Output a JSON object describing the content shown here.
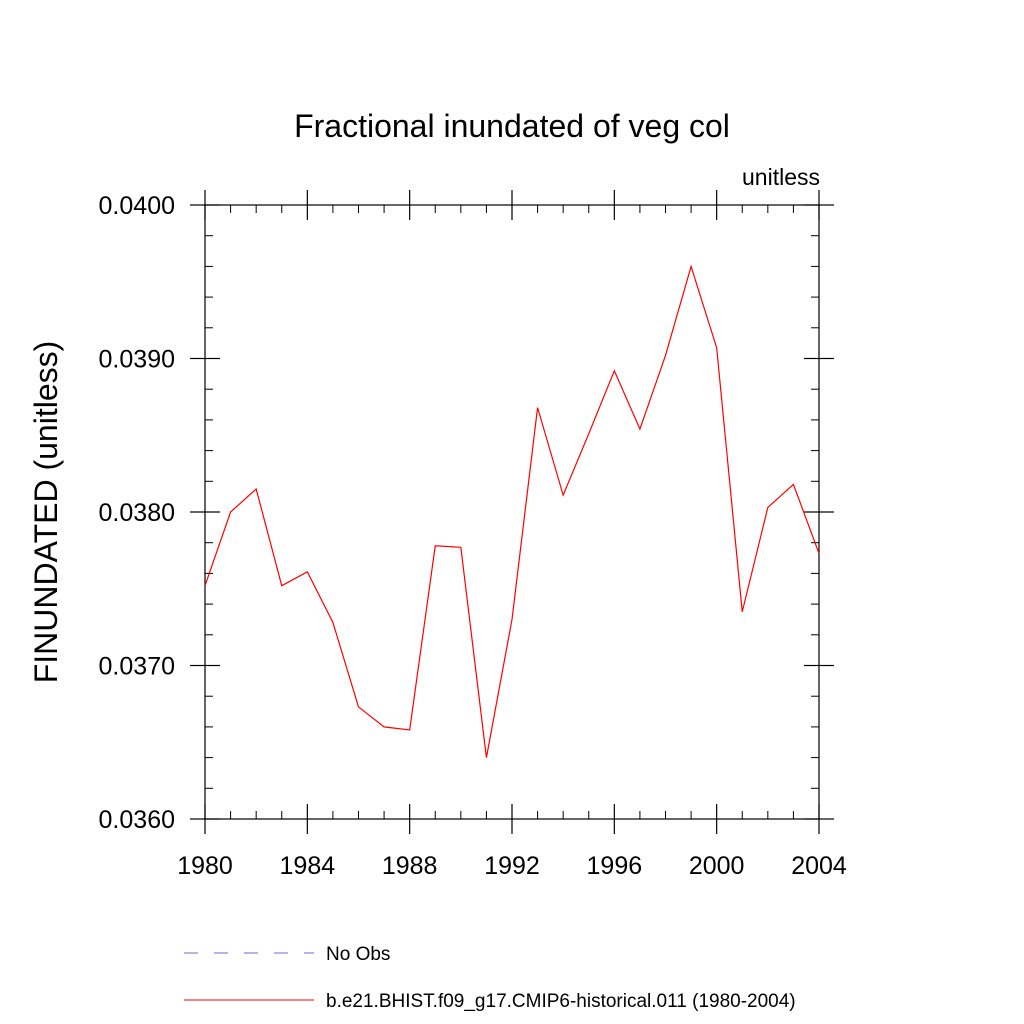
{
  "chart_data": {
    "type": "line",
    "title": "Fractional inundated of veg col",
    "units_label": "unitless",
    "xlabel": "",
    "ylabel": "FINUNDATED  (unitless)",
    "xlim": [
      1980,
      2004
    ],
    "ylim": [
      0.036,
      0.04
    ],
    "x_ticks": [
      1980,
      1984,
      1988,
      1992,
      1996,
      2000,
      2004
    ],
    "x_tick_labels": [
      "1980",
      "1984",
      "1988",
      "1992",
      "1996",
      "2000",
      "2004"
    ],
    "y_ticks": [
      0.036,
      0.037,
      0.038,
      0.039,
      0.04
    ],
    "y_tick_labels": [
      "0.0360",
      "0.0370",
      "0.0380",
      "0.0390",
      "0.0400"
    ],
    "grid": false,
    "legend_position": "bottom",
    "series": [
      {
        "name": "No Obs",
        "color": "#6a6ad8",
        "style": "dashed",
        "x": [],
        "values": []
      },
      {
        "name": "b.e21.BHIST.f09_g17.CMIP6-historical.011 (1980-2004)",
        "color": "#ff0000",
        "style": "solid",
        "x": [
          1980,
          1981,
          1982,
          1983,
          1984,
          1985,
          1986,
          1987,
          1988,
          1989,
          1990,
          1991,
          1992,
          1993,
          1994,
          1995,
          1996,
          1997,
          1998,
          1999,
          2000,
          2001,
          2002,
          2003,
          2004
        ],
        "values": [
          0.03752,
          0.038,
          0.03815,
          0.03752,
          0.03761,
          0.03728,
          0.03673,
          0.0366,
          0.03658,
          0.03778,
          0.03777,
          0.0364,
          0.0373,
          0.03868,
          0.03811,
          0.03851,
          0.03892,
          0.03854,
          0.03902,
          0.0396,
          0.03907,
          0.03735,
          0.03803,
          0.03818,
          0.03773
        ]
      }
    ]
  }
}
